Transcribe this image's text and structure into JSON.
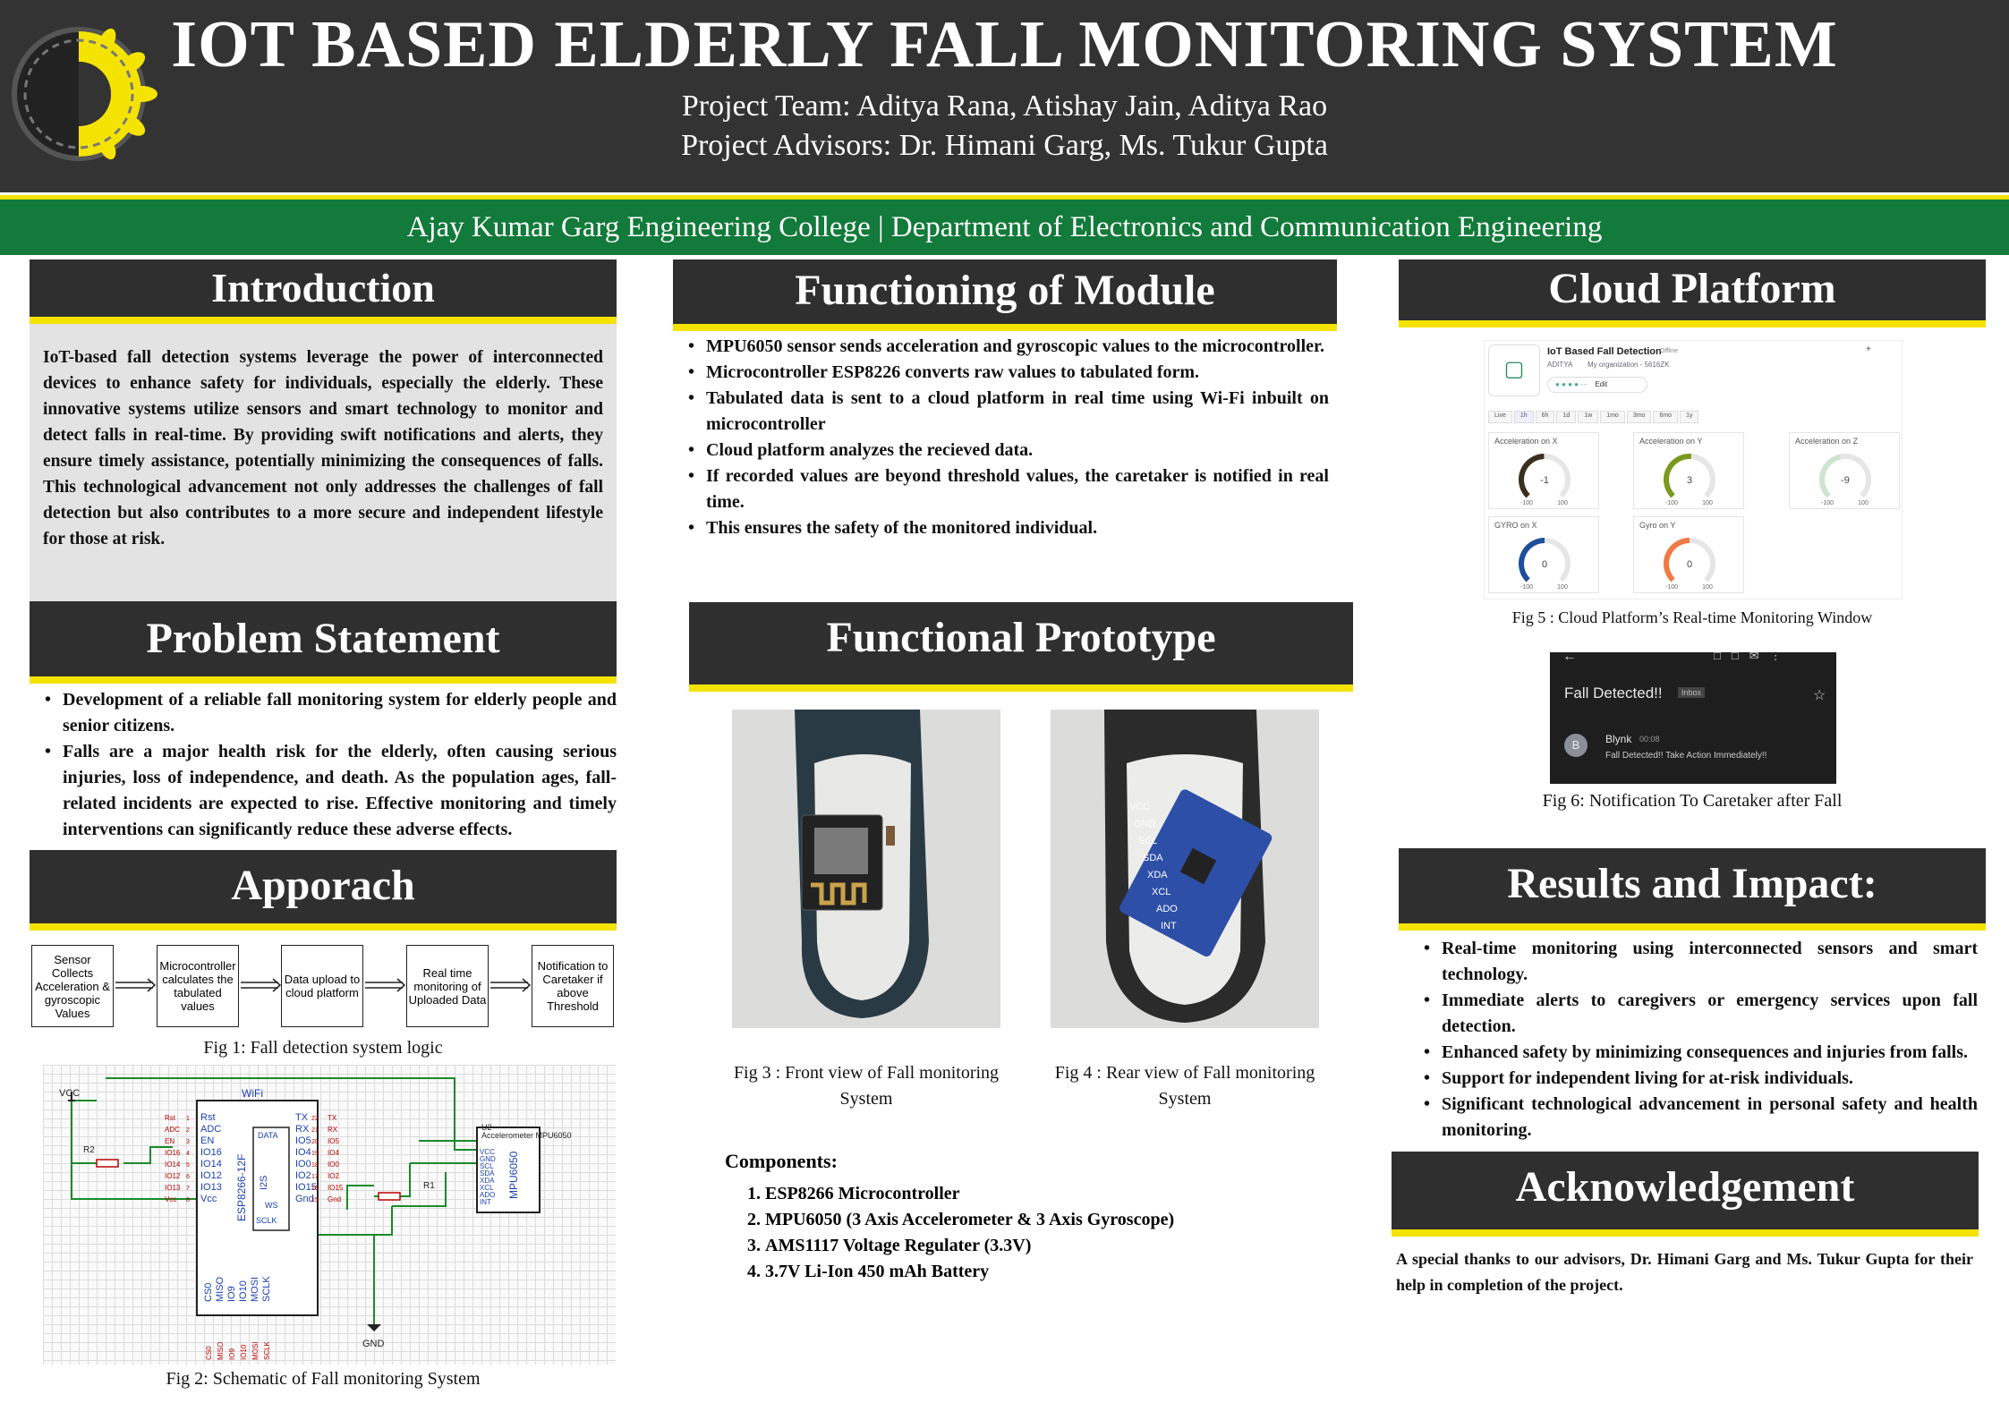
{
  "header": {
    "title": "IOT BASED ELDERLY FALL MONITORING SYSTEM",
    "team": "Project Team: Aditya Rana, Atishay Jain, Aditya Rao",
    "advisors": "Project Advisors: Dr. Himani Garg, Ms. Tukur Gupta",
    "college": "Ajay Kumar Garg Engineering College | Department of Electronics and Communication Engineering"
  },
  "intro": {
    "heading": "Introduction",
    "text": "IoT-based fall detection systems leverage the power of interconnected devices to enhance safety for individuals, especially the elderly. These innovative systems utilize sensors and smart technology to monitor and detect falls in real-time. By providing swift notifications and alerts, they ensure timely assistance, potentially minimizing the consequences of falls. This technological advancement not only addresses the challenges of fall detection but also contributes to a more secure and independent lifestyle for those at risk."
  },
  "problem": {
    "heading": "Problem Statement",
    "items": [
      "Development of a reliable fall monitoring system for elderly people and senior citizens.",
      "Falls are a major health risk for the elderly, often causing serious injuries, loss of independence, and death. As the population ages, fall-related incidents are expected to rise. Effective monitoring and timely interventions can significantly reduce these adverse effects."
    ]
  },
  "approach": {
    "heading": "Apporach",
    "flow": [
      "Sensor Collects Acceleration & gyroscopic Values",
      "Microcontroller calculates the tabulated values",
      "Data upload to cloud platform",
      "Real time monitoring of Uploaded Data",
      "Notification to Caretaker if above Threshold"
    ],
    "fig1": "Fig 1: Fall detection system logic",
    "fig2": "Fig 2: Schematic of Fall monitoring System"
  },
  "schematic": {
    "vcc": "VCC",
    "gnd": "GND",
    "r1": "R1",
    "r2": "R2",
    "wifi": "WiFi",
    "chip": "ESP8266-12F",
    "sensor": "MPU6050",
    "u2": "U2",
    "u2sub": "Accelerometer MPU6050",
    "data": "DATA",
    "ws": "WS",
    "sclk": "SCLK",
    "i2s": "I2S",
    "left_pins": [
      "Rst",
      "ADC",
      "EN",
      "IO16",
      "IO14",
      "IO12",
      "IO13",
      "Vcc"
    ],
    "right_pins": [
      "TX",
      "RX",
      "IO5",
      "IO4",
      "IO0",
      "IO2",
      "IO15",
      "Gnd"
    ],
    "bottom_pins": [
      "CS0",
      "MISO",
      "IO9",
      "IO10",
      "MOSI",
      "SCLK"
    ],
    "sensor_pins": [
      "VCC",
      "GND",
      "SCL",
      "SDA",
      "XDA",
      "XCL",
      "ADO",
      "INT"
    ]
  },
  "module": {
    "heading": "Functioning of Module",
    "items": [
      "MPU6050 sensor sends acceleration and gyroscopic values to the microcontroller.",
      "Microcontroller ESP8226 converts raw values to tabulated form.",
      "Tabulated data is sent to a cloud platform in real time using Wi-Fi inbuilt on microcontroller",
      "Cloud platform analyzes the recieved data.",
      "If recorded values are beyond threshold values, the caretaker is notified in real time.",
      "This ensures the safety of the monitored individual."
    ]
  },
  "prototype": {
    "heading": "Functional Prototype",
    "fig3": "Fig 3 : Front view of Fall monitoring System",
    "fig4": "Fig 4 : Rear view of Fall monitoring System",
    "components_title": "Components:",
    "components": [
      "ESP8266 Microcontroller",
      "MPU6050 (3 Axis Accelerometer & 3 Axis Gyroscope)",
      "AMS1117 Voltage Regulater (3.3V)",
      "3.7V Li-Ion 450 mAh Battery"
    ],
    "board_labels": [
      "VCC",
      "GND",
      "SCL",
      "SDA",
      "XDA",
      "XCL",
      "ADO",
      "INT"
    ]
  },
  "cloud": {
    "heading": "Cloud Platform",
    "app_title": "IoT Based Fall Detection",
    "status": "Offline",
    "owner": "ADITYA",
    "org": "My organization - 5616ZK",
    "edit": "Edit",
    "time_tabs": [
      "Live",
      "1h",
      "6h",
      "1d",
      "1w",
      "1mo",
      "3mo",
      "6mo",
      "1y"
    ],
    "gauges": [
      {
        "label": "Acceleration on X",
        "value": "-1",
        "min": "-100",
        "max": "100",
        "level": 0.495,
        "color": "#3a3020"
      },
      {
        "label": "Acceleration on Y",
        "value": "3",
        "min": "-100",
        "max": "100",
        "level": 0.515,
        "color": "#7a9a1e"
      },
      {
        "label": "Acceleration on Z",
        "value": "-9",
        "min": "-100",
        "max": "100",
        "level": 0.455,
        "color": "#cfe3cf"
      },
      {
        "label": "GYRO on X",
        "value": "0",
        "min": "-100",
        "max": "100",
        "level": 0.5,
        "color": "#1d4f9a"
      },
      {
        "label": "Gyro on Y",
        "value": "0",
        "min": "-100",
        "max": "100",
        "level": 0.5,
        "color": "#f07a45"
      }
    ],
    "fig5": "Fig 5 : Cloud Platform’s Real-time Monitoring Window"
  },
  "notification": {
    "subject": "Fall Detected!!",
    "tag": "Inbox",
    "sender": "Blynk",
    "time": "00:08",
    "avatar": "B",
    "message": "Fall Detected!! Take Action Immediately!!",
    "fig6": "Fig 6: Notification To Caretaker after Fall"
  },
  "results": {
    "heading": "Results and Impact:",
    "items": [
      "Real-time monitoring using interconnected sensors and smart technology.",
      "Immediate alerts to caregivers or emergency services upon fall detection.",
      "Enhanced safety by minimizing consequences and injuries from falls.",
      "Support for independent living for at-risk individuals.",
      "Significant technological advancement in personal safety and health monitoring."
    ]
  },
  "ack": {
    "heading": "Acknowledgement",
    "text": "A special thanks to our advisors, Dr. Himani Garg and Ms. Tukur Gupta for their help in  completion of the project."
  },
  "colors": {
    "header": "#333333",
    "accent": "#f4e300",
    "band": "#127a3a"
  }
}
